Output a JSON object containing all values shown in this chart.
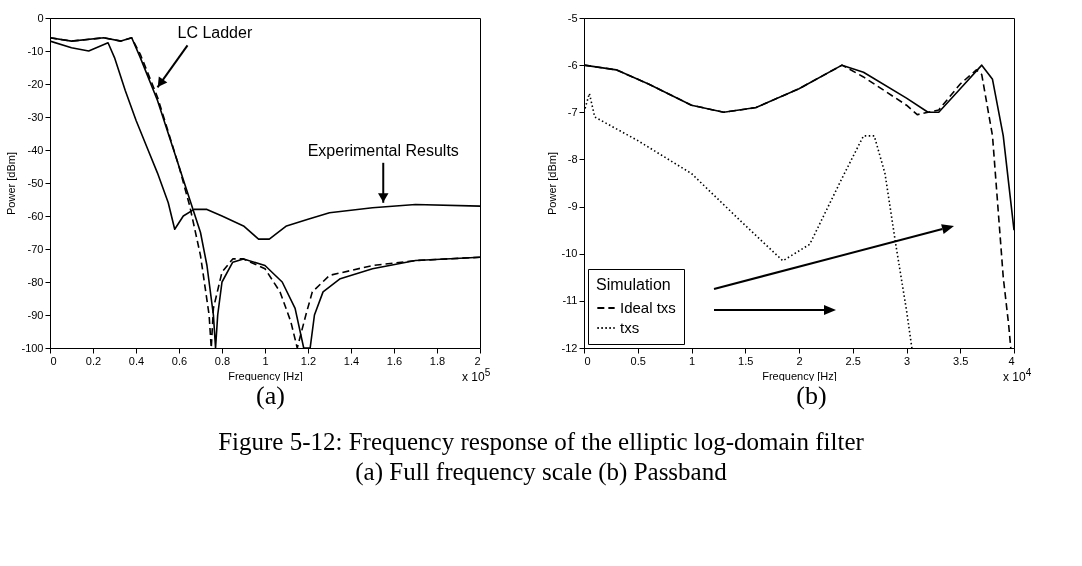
{
  "chart_data": [
    {
      "type": "line",
      "xlabel": "Frequency [Hz]",
      "ylabel": "Power [dBm]",
      "xlim": [
        0,
        2
      ],
      "ylim": [
        -100,
        0
      ],
      "xticks": [
        0,
        0.2,
        0.4,
        0.6,
        0.8,
        1,
        1.2,
        1.4,
        1.6,
        1.8,
        2
      ],
      "yticks": [
        -100,
        -90,
        -80,
        -70,
        -60,
        -50,
        -40,
        -30,
        -20,
        -10,
        0
      ],
      "grid": false,
      "annotations": [
        {
          "text": "LC Ladder",
          "x": 0.5,
          "y": -21
        },
        {
          "text": "Experimental Results",
          "x": 1.55,
          "y": -56
        },
        "x 10$^{5}$",
        "(a)"
      ],
      "series": [
        {
          "color": "#000000",
          "line_style": "solid",
          "x": [
            0,
            0.1,
            0.18,
            0.27,
            0.3,
            0.35,
            0.4,
            0.45,
            0.5,
            0.55,
            0.58,
            0.62,
            0.67,
            0.73,
            0.8,
            0.9,
            0.97,
            1.02,
            1.1,
            1.2,
            1.3,
            1.5,
            1.7,
            2
          ],
          "values": [
            -7,
            -9,
            -10,
            -7.5,
            -12,
            -22,
            -31,
            -39,
            -47,
            -56,
            -64,
            -60,
            -58,
            -58,
            -60,
            -63,
            -67,
            -67,
            -63,
            -61,
            -59,
            -57.5,
            -56.5,
            -57
          ]
        },
        {
          "color": "#000000",
          "line_style": "solid",
          "x": [
            0,
            0.1,
            0.25,
            0.33,
            0.38,
            0.42,
            0.5,
            0.55,
            0.6,
            0.65,
            0.7,
            0.73,
            0.76,
            0.77,
            0.78,
            0.8,
            0.85,
            0.9,
            1,
            1.08,
            1.14,
            1.18,
            1.21,
            1.23,
            1.27,
            1.35,
            1.5,
            1.7,
            2
          ],
          "values": [
            -6,
            -7,
            -6,
            -7,
            -6,
            -12,
            -25,
            -35,
            -45,
            -55,
            -65,
            -75,
            -90,
            -100,
            -90,
            -80,
            -74,
            -73,
            -75,
            -80,
            -88,
            -100,
            -100,
            -90,
            -83,
            -79,
            -76,
            -73.5,
            -72.5
          ]
        },
        {
          "color": "#000000",
          "line_style": "dashed",
          "x": [
            0,
            0.1,
            0.25,
            0.33,
            0.38,
            0.42,
            0.5,
            0.6,
            0.65,
            0.7,
            0.74,
            0.75,
            0.76,
            0.8,
            0.85,
            0.9,
            1,
            1.07,
            1.12,
            1.15,
            1.19,
            1.22,
            1.3,
            1.5,
            1.7,
            2
          ],
          "values": [
            -6,
            -7,
            -6,
            -7,
            -6,
            -11,
            -24,
            -45,
            -57,
            -72,
            -90,
            -100,
            -88,
            -77,
            -73,
            -73,
            -76,
            -83,
            -92,
            -100,
            -90,
            -83,
            -78,
            -75,
            -73.5,
            -72.5
          ]
        }
      ]
    },
    {
      "type": "line",
      "xlabel": "Frequency [Hz]",
      "ylabel": "Power [dBm]",
      "xlim": [
        0,
        4
      ],
      "ylim": [
        -12,
        -5
      ],
      "xticks": [
        0,
        0.5,
        1,
        1.5,
        2,
        2.5,
        3,
        3.5,
        4
      ],
      "yticks": [
        -12,
        -11,
        -10,
        -9,
        -8,
        -7,
        -6,
        -5
      ],
      "grid": false,
      "legend": "bottom left",
      "legend_title": "Simulation",
      "annotations": [
        "x 10$^{4}$",
        "(b)",
        "Figure 5-12:  Frequency response of the elliptic log-domain filter",
        "(a) Full frequency scale (b) Passband"
      ],
      "series": [
        {
          "color": "#000000",
          "line_style": "solid",
          "x": [
            0,
            0.3,
            0.6,
            1,
            1.3,
            1.6,
            2,
            2.4,
            2.6,
            3,
            3.2,
            3.3,
            3.5,
            3.7,
            3.8,
            3.9,
            4
          ],
          "values": [
            -6,
            -6.1,
            -6.4,
            -6.85,
            -7,
            -6.9,
            -6.5,
            -6,
            -6.15,
            -6.7,
            -7,
            -7,
            -6.5,
            -6,
            -6.3,
            -7.5,
            -9.5
          ]
        },
        {
          "name": "Ideal txs",
          "color": "#000000",
          "line_style": "dashed",
          "x": [
            0,
            0.3,
            0.6,
            1,
            1.3,
            1.6,
            2,
            2.4,
            2.6,
            3,
            3.1,
            3.3,
            3.5,
            3.65,
            3.7,
            3.8,
            3.85,
            3.9,
            3.95,
            3.97
          ],
          "values": [
            -6,
            -6.1,
            -6.4,
            -6.85,
            -7,
            -6.9,
            -6.5,
            -6,
            -6.25,
            -6.85,
            -7.05,
            -6.95,
            -6.4,
            -6.1,
            -6.2,
            -7.5,
            -9,
            -10.5,
            -11.5,
            -12
          ]
        },
        {
          "name": "txs",
          "color": "#000000",
          "line_style": "dotted",
          "x": [
            0,
            0.05,
            0.1,
            0.5,
            1,
            1.5,
            1.85,
            2.1,
            2.4,
            2.6,
            2.7,
            2.8,
            2.9,
            3,
            3.05
          ],
          "values": [
            -7,
            -6.6,
            -7.1,
            -7.6,
            -8.3,
            -9.4,
            -10.15,
            -9.8,
            -8.4,
            -7.5,
            -7.5,
            -8.3,
            -9.8,
            -11.2,
            -12
          ]
        }
      ]
    }
  ]
}
